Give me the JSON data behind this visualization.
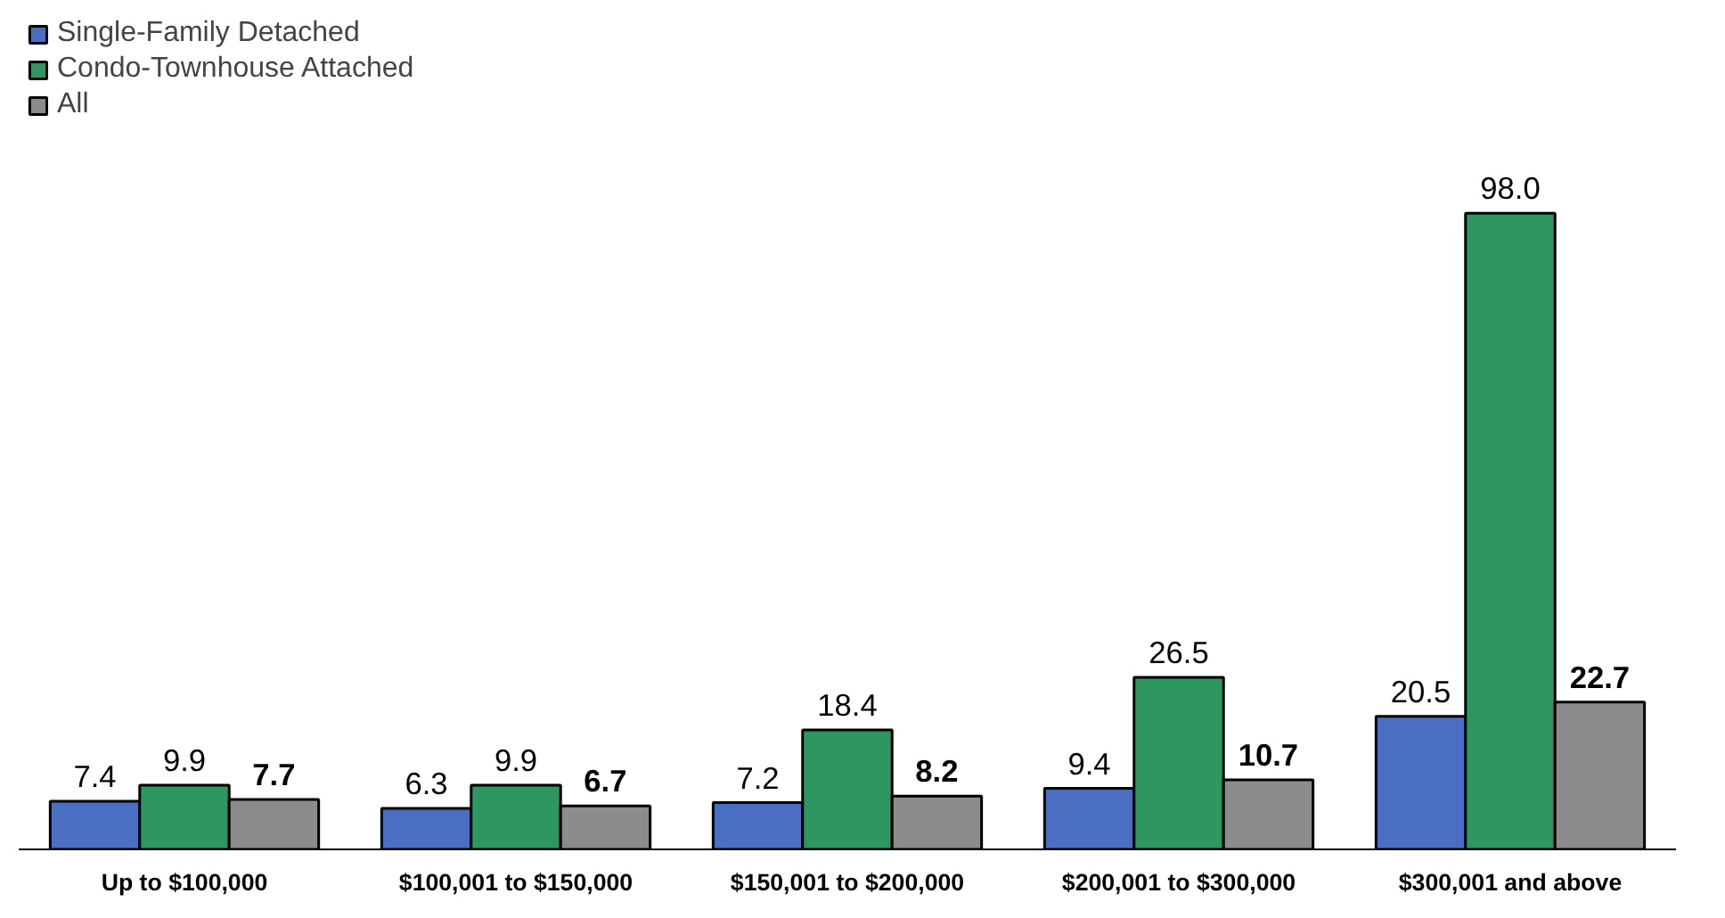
{
  "chart_data": {
    "type": "bar",
    "categories": [
      "Up to $100,000",
      "$100,001 to $150,000",
      "$150,001 to $200,000",
      "$200,001 to $300,000",
      "$300,001 and above"
    ],
    "series": [
      {
        "name": "Single-Family Detached",
        "color": "#4a6fc2",
        "values": [
          7.4,
          6.3,
          7.2,
          9.4,
          20.5
        ],
        "value_labels": [
          "7.4",
          "6.3",
          "7.2",
          "9.4",
          "20.5"
        ]
      },
      {
        "name": "Condo-Townhouse Attached",
        "color": "#2e9660",
        "values": [
          9.9,
          9.9,
          18.4,
          26.5,
          98.0
        ],
        "value_labels": [
          "9.9",
          "9.9",
          "18.4",
          "26.5",
          "98.0"
        ]
      },
      {
        "name": "All",
        "color": "#8c8c8c",
        "values": [
          7.7,
          6.7,
          8.2,
          10.7,
          22.7
        ],
        "value_labels": [
          "7.7",
          "6.7",
          "8.2",
          "10.7",
          "22.7"
        ]
      }
    ],
    "legend": "top left",
    "grid": false
  }
}
